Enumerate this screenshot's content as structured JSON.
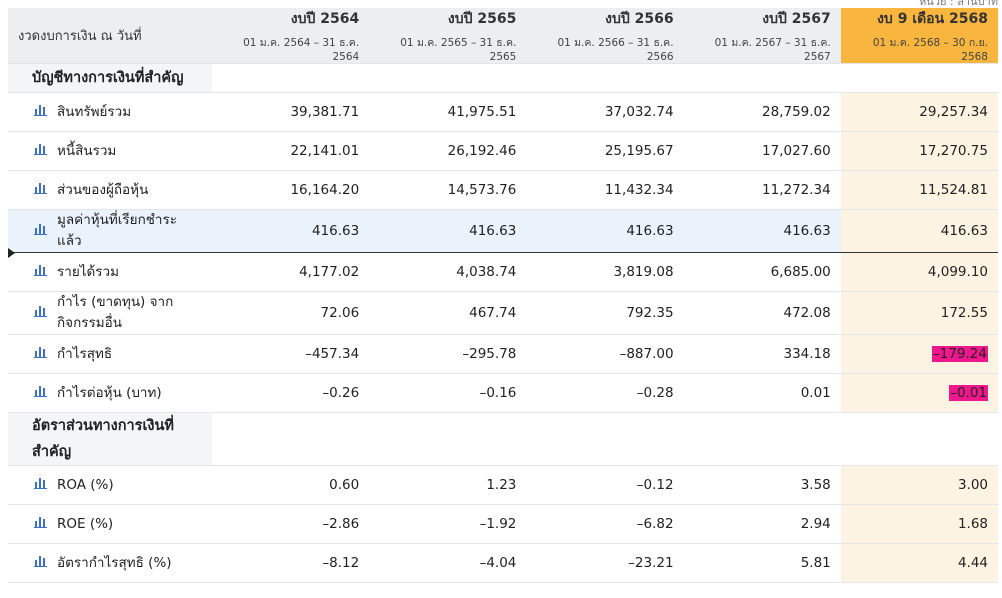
{
  "unit_note": "หน่วย : ล้านบาท",
  "header": {
    "label": "งวดงบการเงิน ณ วันที่",
    "columns": [
      {
        "title": "งบปี 2564",
        "period": "01 ม.ค. 2564 – 31 ธ.ค. 2564"
      },
      {
        "title": "งบปี 2565",
        "period": "01 ม.ค. 2565 – 31 ธ.ค. 2565"
      },
      {
        "title": "งบปี 2566",
        "period": "01 ม.ค. 2566 – 31 ธ.ค. 2566"
      },
      {
        "title": "งบปี 2567",
        "period": "01 ม.ค. 2567 – 31 ธ.ค. 2567"
      },
      {
        "title": "งบ 9 เดือน 2568",
        "period": "01 ม.ค. 2568 – 30 ก.ย. 2568"
      }
    ]
  },
  "sections": [
    {
      "title": "บัญชีทางการเงินที่สำคัญ",
      "rows": [
        {
          "label": "สินทรัพย์รวม",
          "values": [
            "39,381.71",
            "41,975.51",
            "37,032.74",
            "28,759.02",
            "29,257.34"
          ]
        },
        {
          "label": "หนี้สินรวม",
          "values": [
            "22,141.01",
            "26,192.46",
            "25,195.67",
            "17,027.60",
            "17,270.75"
          ]
        },
        {
          "label": "ส่วนของผู้ถือหุ้น",
          "values": [
            "16,164.20",
            "14,573.76",
            "11,432.34",
            "11,272.34",
            "11,524.81"
          ]
        },
        {
          "label": "มูลค่าหุ้นที่เรียกชำระแล้ว",
          "values": [
            "416.63",
            "416.63",
            "416.63",
            "416.63",
            "416.63"
          ]
        },
        {
          "label": "รายได้รวม",
          "values": [
            "4,177.02",
            "4,038.74",
            "3,819.08",
            "6,685.00",
            "4,099.10"
          ]
        },
        {
          "label": "กำไร (ขาดทุน) จากกิจกรรมอื่น",
          "values": [
            "72.06",
            "467.74",
            "792.35",
            "472.08",
            "172.55"
          ]
        },
        {
          "label": "กำไรสุทธิ",
          "values": [
            "–457.34",
            "–295.78",
            "–887.00",
            "334.18",
            "–179.24"
          ]
        },
        {
          "label": "กำไรต่อหุ้น (บาท)",
          "values": [
            "–0.26",
            "–0.16",
            "–0.28",
            "0.01",
            "–0.01"
          ]
        }
      ]
    },
    {
      "title": "อัตราส่วนทางการเงินที่สำคัญ",
      "rows": [
        {
          "label": "ROA (%)",
          "values": [
            "0.60",
            "1.23",
            "–0.12",
            "3.58",
            "3.00"
          ]
        },
        {
          "label": "ROE (%)",
          "values": [
            "–2.86",
            "–1.92",
            "–6.82",
            "2.94",
            "1.68"
          ]
        },
        {
          "label": "อัตรากำไรสุทธิ (%)",
          "values": [
            "–8.12",
            "–4.04",
            "–23.21",
            "5.81",
            "4.44"
          ]
        }
      ]
    }
  ]
}
